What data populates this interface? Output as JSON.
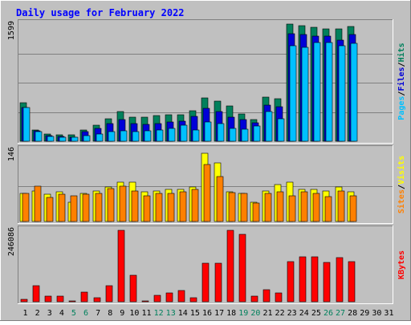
{
  "title": "Daily usage for February 2022",
  "colors": {
    "background": "#C0C0C0",
    "frame_light": "#FFFFFF",
    "frame_dark": "#808080",
    "title_text": "#0000FF",
    "hits": "#00805C",
    "files": "#0000D8",
    "pages": "#00C0FF",
    "visits": "#FFFF00",
    "sites": "#FF8000",
    "kbytes": "#FF0000",
    "weekday_label": "#000000",
    "weekend_label": "#00805C"
  },
  "chart_data": [
    {
      "type": "bar",
      "panel": "hits-files-pages",
      "ymax_label": "1599",
      "ylim": [
        0,
        1599
      ],
      "grid": true,
      "ylabels": [
        "Pages",
        "/",
        "Files",
        "/",
        "Hits"
      ],
      "categories": [
        "1",
        "2",
        "3",
        "4",
        "5",
        "6",
        "7",
        "8",
        "9",
        "10",
        "11",
        "12",
        "13",
        "14",
        "15",
        "16",
        "17",
        "18",
        "19",
        "20",
        "21",
        "22",
        "23",
        "24",
        "25",
        "26",
        "27",
        "28",
        "29",
        "30",
        "31"
      ],
      "series": [
        {
          "name": "Hits",
          "values": [
            530,
            150,
            100,
            90,
            90,
            150,
            220,
            310,
            410,
            330,
            330,
            350,
            360,
            360,
            420,
            590,
            550,
            480,
            370,
            300,
            600,
            580,
            1599,
            1580,
            1560,
            1530,
            1530,
            1570,
            0,
            0,
            0
          ]
        },
        {
          "name": "Files",
          "values": [
            460,
            140,
            80,
            70,
            60,
            130,
            170,
            240,
            300,
            240,
            230,
            240,
            260,
            270,
            340,
            450,
            410,
            330,
            300,
            250,
            490,
            470,
            1470,
            1460,
            1440,
            1430,
            1380,
            1460,
            0,
            0,
            0
          ]
        },
        {
          "name": "Pages",
          "values": [
            460,
            130,
            70,
            60,
            50,
            80,
            100,
            130,
            140,
            130,
            140,
            150,
            180,
            220,
            150,
            260,
            240,
            180,
            160,
            210,
            410,
            310,
            1300,
            1280,
            1350,
            1350,
            1300,
            1340,
            0,
            0,
            0
          ]
        }
      ]
    },
    {
      "type": "bar",
      "panel": "visits-sites",
      "ymax_label": "146",
      "ylim": [
        0,
        146
      ],
      "grid": true,
      "ylabels": [
        "Sites",
        "/",
        "Visits"
      ],
      "categories": [
        "1",
        "2",
        "3",
        "4",
        "5",
        "6",
        "7",
        "8",
        "9",
        "10",
        "11",
        "12",
        "13",
        "14",
        "15",
        "16",
        "17",
        "18",
        "19",
        "20",
        "21",
        "22",
        "23",
        "24",
        "25",
        "26",
        "27",
        "28",
        "29",
        "30",
        "31"
      ],
      "series": [
        {
          "name": "Visits",
          "values": [
            58,
            62,
            55,
            60,
            40,
            58,
            62,
            70,
            80,
            80,
            60,
            62,
            65,
            66,
            70,
            140,
            120,
            60,
            58,
            40,
            62,
            75,
            80,
            66,
            65,
            62,
            70,
            60,
            0,
            0,
            0
          ]
        },
        {
          "name": "Sites",
          "values": [
            58,
            72,
            50,
            56,
            52,
            55,
            57,
            68,
            72,
            62,
            53,
            58,
            58,
            60,
            65,
            117,
            92,
            59,
            57,
            37,
            57,
            60,
            52,
            61,
            58,
            51,
            62,
            53,
            0,
            0,
            0
          ]
        }
      ]
    },
    {
      "type": "bar",
      "panel": "kbytes",
      "ymax_label": "246086",
      "ylim": [
        0,
        246086
      ],
      "grid": false,
      "ylabels": [
        "KBytes"
      ],
      "categories": [
        "1",
        "2",
        "3",
        "4",
        "5",
        "6",
        "7",
        "8",
        "9",
        "10",
        "11",
        "12",
        "13",
        "14",
        "15",
        "16",
        "17",
        "18",
        "19",
        "20",
        "21",
        "22",
        "23",
        "24",
        "25",
        "26",
        "27",
        "28",
        "29",
        "30",
        "31"
      ],
      "series": [
        {
          "name": "KBytes",
          "values": [
            7000,
            55000,
            18000,
            18000,
            3000,
            32000,
            13000,
            55000,
            246086,
            90000,
            3000,
            22000,
            30000,
            38000,
            15000,
            133000,
            134000,
            246086,
            232000,
            18000,
            42000,
            30000,
            138000,
            155000,
            155000,
            135000,
            153000,
            138000,
            0,
            0,
            0
          ]
        }
      ]
    }
  ],
  "x_axis": {
    "labels": [
      "1",
      "2",
      "3",
      "4",
      "5",
      "6",
      "7",
      "8",
      "9",
      "10",
      "11",
      "12",
      "13",
      "14",
      "15",
      "16",
      "17",
      "18",
      "19",
      "20",
      "21",
      "22",
      "23",
      "24",
      "25",
      "26",
      "27",
      "28",
      "29",
      "30",
      "31"
    ],
    "weekend": [
      5,
      6,
      12,
      13,
      19,
      20,
      26,
      27
    ]
  }
}
